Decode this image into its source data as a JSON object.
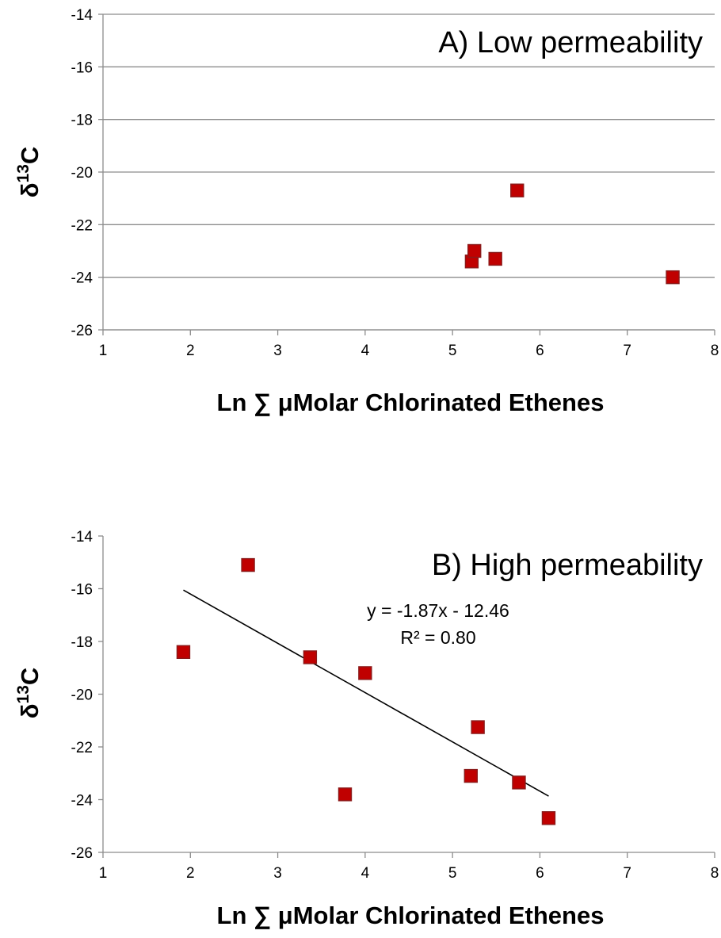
{
  "chart_data": [
    {
      "type": "scatter",
      "title": "A) Low permeability",
      "xlabel": "Ln ∑ μMolar Chlorinated Ethenes",
      "ylabel": {
        "main": "δ",
        "sup": "13",
        "rest": "C"
      },
      "xlim": [
        1,
        8
      ],
      "ylim": [
        -26,
        -14
      ],
      "xticks": [
        "1",
        "2",
        "3",
        "4",
        "5",
        "6",
        "7",
        "8"
      ],
      "yticks": [
        "-14",
        "-16",
        "-18",
        "-20",
        "-22",
        "-24",
        "-26"
      ],
      "grid": "horizontal",
      "marker_color": "#C00000",
      "points": [
        {
          "x": 5.22,
          "y": -23.4
        },
        {
          "x": 5.25,
          "y": -23.0
        },
        {
          "x": 5.49,
          "y": -23.3
        },
        {
          "x": 5.74,
          "y": -20.7
        },
        {
          "x": 7.52,
          "y": -24.0
        }
      ]
    },
    {
      "type": "scatter",
      "title": "B) High permeability",
      "xlabel": "Ln ∑ μMolar Chlorinated Ethenes",
      "ylabel": {
        "main": "δ",
        "sup": "13",
        "rest": "C"
      },
      "xlim": [
        1,
        8
      ],
      "ylim": [
        -26,
        -14
      ],
      "xticks": [
        "1",
        "2",
        "3",
        "4",
        "5",
        "6",
        "7",
        "8"
      ],
      "yticks": [
        "-14",
        "-16",
        "-18",
        "-20",
        "-22",
        "-24",
        "-26"
      ],
      "grid": "none",
      "marker_color": "#C00000",
      "points": [
        {
          "x": 1.92,
          "y": -18.4
        },
        {
          "x": 2.66,
          "y": -15.1
        },
        {
          "x": 3.37,
          "y": -18.6
        },
        {
          "x": 3.77,
          "y": -23.8
        },
        {
          "x": 4.0,
          "y": -19.2
        },
        {
          "x": 5.21,
          "y": -23.1
        },
        {
          "x": 5.29,
          "y": -21.25
        },
        {
          "x": 5.76,
          "y": -23.35
        },
        {
          "x": 6.1,
          "y": -24.7
        }
      ],
      "trendline": {
        "slope": -1.87,
        "intercept": -12.46,
        "x_start": 1.92,
        "x_end": 6.1
      },
      "equation_text": "y = -1.87x - 12.46",
      "r2_text": "R² = 0.80"
    }
  ]
}
